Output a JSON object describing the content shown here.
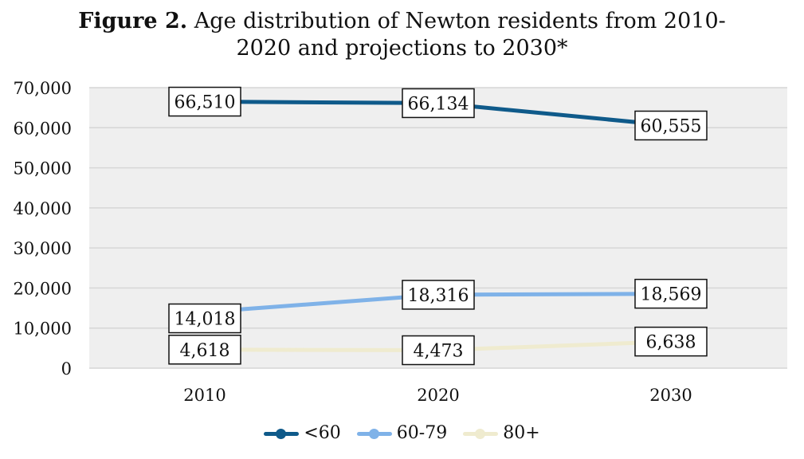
{
  "chart_data": {
    "type": "line",
    "title_bold": "Figure 2.",
    "title_line1": "Age distribution of Newton residents from 2010-",
    "title_line2": "2020 and projections to 2030*",
    "categories": [
      "2010",
      "2020",
      "2030"
    ],
    "ylim": [
      0,
      70000
    ],
    "yticks": [
      0,
      10000,
      20000,
      30000,
      40000,
      50000,
      60000,
      70000
    ],
    "ytick_labels": [
      "0",
      "10,000",
      "20,000",
      "30,000",
      "40,000",
      "50,000",
      "60,000",
      "70,000"
    ],
    "grid": true,
    "legend_position": "bottom",
    "series": [
      {
        "name": "<60",
        "values": [
          66510,
          66134,
          60555
        ],
        "labels": [
          "66,510",
          "66,134",
          "60,555"
        ],
        "color": "#0f5a8a"
      },
      {
        "name": "60-79",
        "values": [
          14018,
          18316,
          18569
        ],
        "labels": [
          "14,018",
          "18,316",
          "18,569"
        ],
        "color": "#7fb2e8"
      },
      {
        "name": "80+",
        "values": [
          4618,
          4473,
          6638
        ],
        "labels": [
          "4,618",
          "4,473",
          "6,638"
        ],
        "color": "#efebcf"
      }
    ]
  }
}
